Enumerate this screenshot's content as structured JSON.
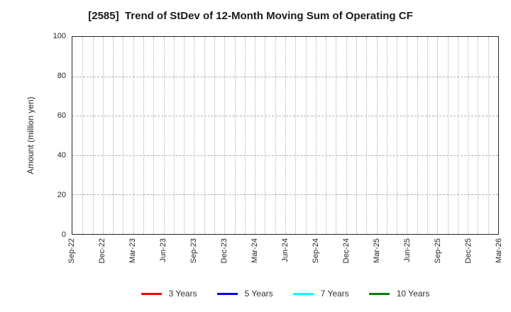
{
  "figure": {
    "title": "[2585]  Trend of StDev of 12-Month Moving Sum of Operating CF"
  },
  "chart_data": {
    "type": "line",
    "title": "[2585]  Trend of StDev of 12-Month Moving Sum of Operating CF",
    "xlabel": "",
    "ylabel": "Amount (million yen)",
    "ylim": [
      0,
      100
    ],
    "y_ticks": [
      0,
      20,
      40,
      60,
      80,
      100
    ],
    "x_tick_labels": [
      "Sep-22",
      "Dec-22",
      "Mar-23",
      "Jun-23",
      "Sep-23",
      "Dec-23",
      "Mar-24",
      "Jun-24",
      "Sep-24",
      "Dec-24",
      "Mar-25",
      "Jun-25",
      "Sep-25",
      "Dec-25",
      "Mar-26"
    ],
    "x_minor_divisions_per_major": 3,
    "grid": true,
    "gridline_color": "#b0b0b0",
    "frame_color": "#262626",
    "legend_position": "bottom",
    "series": [
      {
        "name": "3 Years",
        "color": "#ff0000",
        "values": []
      },
      {
        "name": "5 Years",
        "color": "#0000ff",
        "values": []
      },
      {
        "name": "7 Years",
        "color": "#00ffff",
        "values": []
      },
      {
        "name": "10 Years",
        "color": "#008000",
        "values": []
      }
    ]
  }
}
